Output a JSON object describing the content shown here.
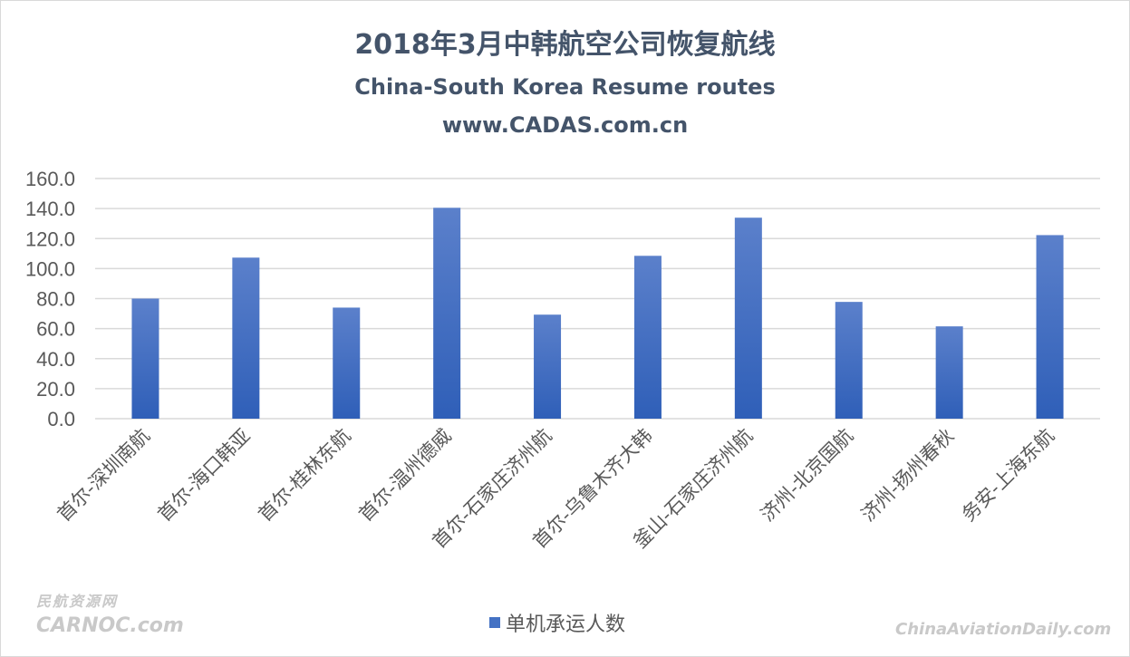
{
  "chart_data": {
    "type": "bar",
    "title": "2018年3月中韩航空公司恢复航线",
    "subtitle": [
      "China-South Korea Resume routes",
      "www.CADAS.com.cn"
    ],
    "categories": [
      "首尔-深圳南航",
      "首尔-海口韩亚",
      "首尔-桂林东航",
      "首尔-温州德威",
      "首尔-石家庄济州航",
      "首尔-乌鲁木齐大韩",
      "釜山-石家庄济州航",
      "济州-北京国航",
      "济州-扬州春秋",
      "务安-上海东航"
    ],
    "series": [
      {
        "name": "单机承运人数",
        "values": [
          80.0,
          107.3,
          74.0,
          140.5,
          69.3,
          108.5,
          133.9,
          77.8,
          61.5,
          122.3
        ],
        "color": "#4472c4"
      }
    ],
    "ylim": [
      0,
      160
    ],
    "yticks": [
      "0.0",
      "20.0",
      "40.0",
      "60.0",
      "80.0",
      "100.0",
      "120.0",
      "140.0",
      "160.0"
    ],
    "grid": true,
    "legend": "bottom"
  },
  "watermarks": {
    "left_top": "民航资源网",
    "left_bottom": "CARNOC.com",
    "right": "ChinaAviationDaily.com"
  }
}
